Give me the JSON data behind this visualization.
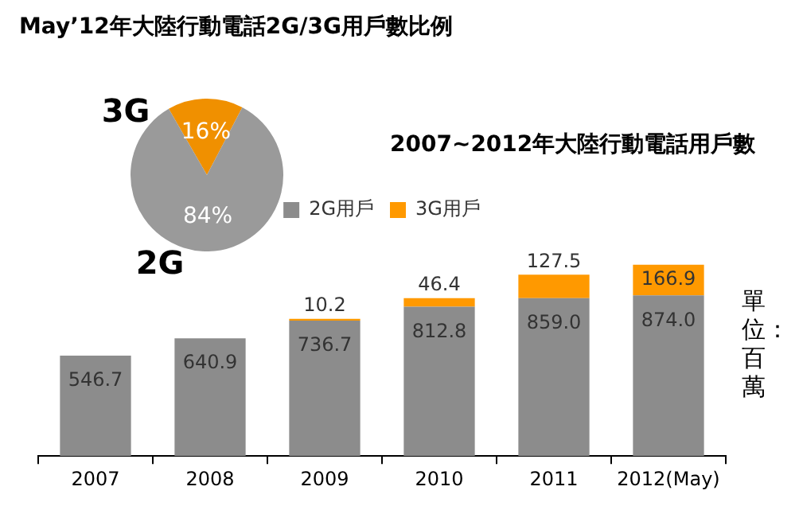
{
  "chart_data": [
    {
      "type": "pie",
      "title": "May’12年大陸行動電話2G/3G用戶數比例",
      "categories": [
        "3G",
        "2G"
      ],
      "values": [
        16,
        84
      ],
      "colors": [
        "#f09000",
        "#9a9a9a"
      ],
      "value_labels": [
        "16%",
        "84%"
      ]
    },
    {
      "type": "bar",
      "title": "2007~2012年大陸行動電話用戶數",
      "stacked": true,
      "legend": "top",
      "categories": [
        "2007",
        "2008",
        "2009",
        "2010",
        "2011",
        "2012(May)"
      ],
      "series": [
        {
          "name": "2G用戶",
          "color": "#8c8c8c",
          "values": [
            546.7,
            640.9,
            736.7,
            812.8,
            859.0,
            874.0
          ],
          "value_labels": [
            "546.7",
            "640.9",
            "736.7",
            "812.8",
            "859.0",
            "874.0"
          ]
        },
        {
          "name": "3G用戶",
          "color": "#ff9900",
          "values": [
            null,
            null,
            10.2,
            46.4,
            127.5,
            166.9
          ],
          "value_labels": [
            null,
            null,
            "10.2",
            "46.4",
            "127.5",
            "166.9"
          ]
        }
      ],
      "annotations": [
        "單位：百萬"
      ]
    }
  ]
}
